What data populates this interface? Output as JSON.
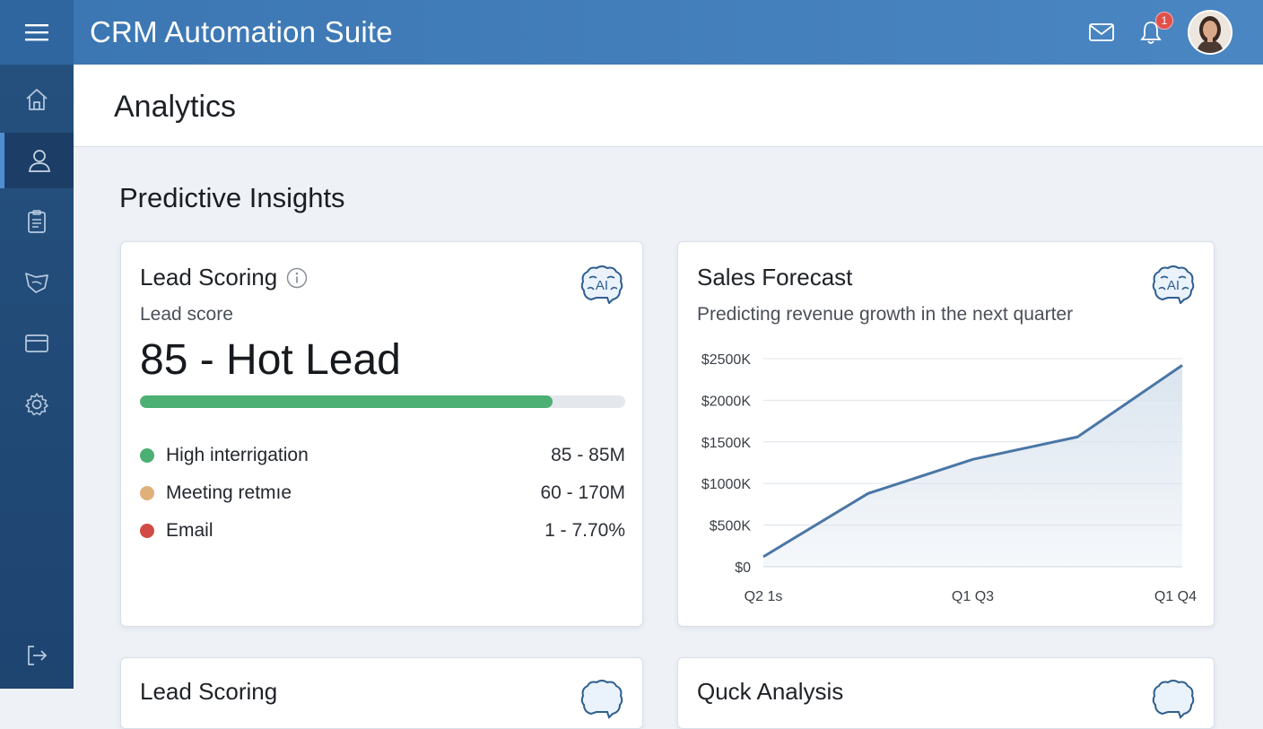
{
  "header": {
    "app_title": "CRM Automation Suite",
    "notification_count": "1"
  },
  "page": {
    "title": "Analytics",
    "section_title": "Predictive Insights"
  },
  "lead_card": {
    "title": "Lead Scoring",
    "subtitle": "Lead score",
    "score_text": "85 - Hot Lead",
    "progress_percent": 85,
    "metrics": [
      {
        "label": "High interrigation",
        "value": "85 - 85M",
        "color": "#4caf73"
      },
      {
        "label": "Meeting retmıe",
        "value": "60 - 170M",
        "color": "#e0b07a"
      },
      {
        "label": "Email",
        "value": "1 - 7.70%",
        "color": "#d24a44"
      }
    ]
  },
  "forecast_card": {
    "title": "Sales Forecast",
    "subtitle": "Predicting revenue growth in the next quarter"
  },
  "bottom_cards": [
    {
      "title": "Lead Scoring"
    },
    {
      "title": "Quck Analysis"
    }
  ],
  "chart_data": {
    "type": "area",
    "y_tick_labels": [
      "$0",
      "$500K",
      "$1000K",
      "$1500K",
      "$2000K",
      "$2500K"
    ],
    "x_tick_labels": [
      "Q2 1s",
      "Q1 Q3",
      "Q1 Q4"
    ],
    "x": [
      0,
      1,
      2,
      3,
      4
    ],
    "values": [
      120,
      880,
      1290,
      1560,
      2420
    ],
    "ylim": [
      0,
      2500
    ],
    "grid": true,
    "line_color": "#4a76a6",
    "fill_color": "#d9e3ee"
  },
  "icons": {
    "menu": "menu-icon",
    "mail": "mail-icon",
    "bell": "bell-icon",
    "sidebar": [
      "home-icon",
      "user-icon",
      "clipboard-icon",
      "leaf-icon",
      "card-icon",
      "gear-icon",
      "logout-icon"
    ],
    "ai": "brain-ai-icon",
    "info": "info-icon"
  }
}
